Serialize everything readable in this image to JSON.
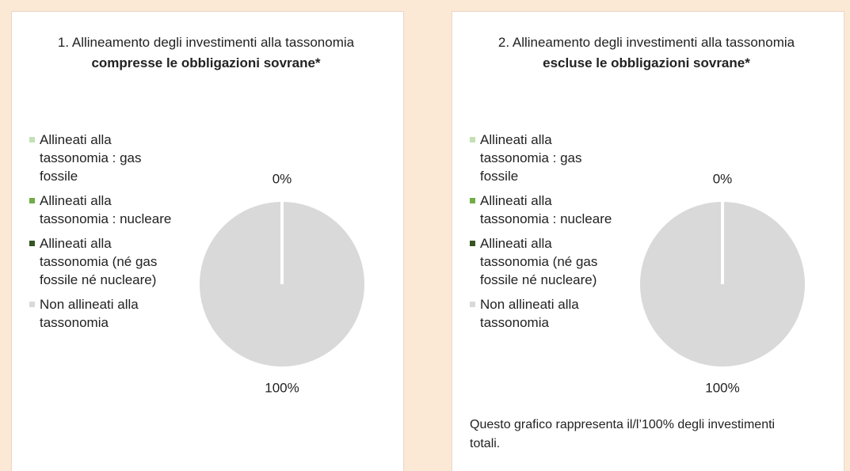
{
  "chart_data": [
    {
      "type": "pie",
      "title": "1. Allineamento degli investimenti alla tassonomia",
      "title_bold": "compresse le obbligazioni sovrane*",
      "categories": [
        "Allineati alla tassonomia : gas fossile",
        "Allineati alla tassonomia : nucleare",
        "Allineati alla tassonomia (né gas fossile né nucleare)",
        "Non allineati alla tassonomia"
      ],
      "values": [
        0,
        0,
        0,
        100
      ],
      "value_labels": [
        "0%",
        null,
        null,
        "100%"
      ],
      "colors": [
        "#c5e0b4",
        "#70ad47",
        "#375623",
        "#d9d9d9"
      ],
      "legend": "left"
    },
    {
      "type": "pie",
      "title": "2. Allineamento degli investimenti alla tassonomia",
      "title_bold": "escluse le obbligazioni sovrane*",
      "categories": [
        "Allineati alla tassonomia : gas fossile",
        "Allineati alla tassonomia : nucleare",
        "Allineati alla tassonomia (né gas fossile né nucleare)",
        "Non allineati alla tassonomia"
      ],
      "values": [
        0,
        0,
        0,
        100
      ],
      "value_labels": [
        "0%",
        null,
        null,
        "100%"
      ],
      "colors": [
        "#c5e0b4",
        "#70ad47",
        "#375623",
        "#d9d9d9"
      ],
      "legend": "left",
      "note": "Questo grafico rappresenta il/l’100% degli investimenti totali."
    }
  ]
}
